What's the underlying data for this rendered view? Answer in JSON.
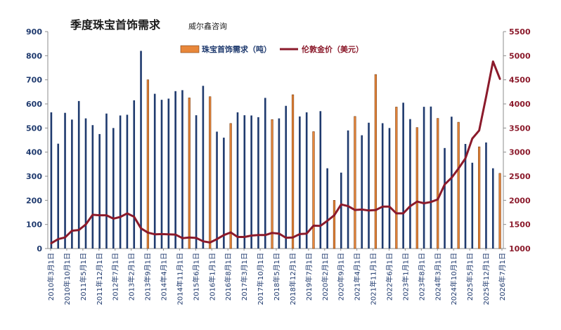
{
  "chart_data": {
    "type": "bar",
    "title": "季度珠宝首饰需求",
    "subtitle": "威尔鑫咨询",
    "legend_position": "top-center",
    "grid": false,
    "left_axis": {
      "min": 0,
      "max": 900,
      "ticks": [
        "0",
        "100",
        "200",
        "300",
        "400",
        "500",
        "600",
        "700",
        "800",
        "900"
      ]
    },
    "right_axis": {
      "min": 1000,
      "max": 5500,
      "ticks": [
        "1000",
        "1500",
        "2000",
        "2500",
        "3000",
        "3500",
        "4000",
        "4500",
        "5000",
        "5500"
      ]
    },
    "x_tick_labels": [
      "2010年3月1日",
      "2010年10月1日",
      "2011年5月1日",
      "2011年12月1日",
      "2012年7月1日",
      "2013年2月1日",
      "2013年9月1日",
      "2014年4月1日",
      "2014年11月1日",
      "2015年6月1日",
      "2016年1月1日",
      "2016年8月1日",
      "2017年3月1日",
      "2017年10月1日",
      "2018年5月1日",
      "2018年12月1日",
      "2019年7月1日",
      "2020年2月1日",
      "2020年9月1日",
      "2021年4月1日",
      "2021年11月1日",
      "2022年6月1日",
      "2023年1月1日",
      "2023年8月1日",
      "2024年3月1日",
      "2024年10月1日",
      "2025年5月1日",
      "2025年12月1日",
      "2026年7月1日"
    ],
    "series": [
      {
        "name": "珠宝首饰需求（吨）",
        "kind": "bar",
        "axis": "left",
        "color": "#1f3a6e",
        "highlight_color": "#e8873a",
        "values": [
          565,
          435,
          563,
          535,
          612,
          540,
          512,
          475,
          560,
          500,
          552,
          555,
          615,
          820,
          700,
          642,
          617,
          622,
          653,
          657,
          625,
          553,
          675,
          630,
          485,
          460,
          519,
          565,
          553,
          552,
          545,
          625,
          535,
          540,
          592,
          638,
          548,
          565,
          485,
          570,
          333,
          200,
          315,
          490,
          548,
          470,
          522,
          722,
          520,
          500,
          587,
          605,
          537,
          502,
          588,
          589,
          540,
          417,
          547,
          524,
          434,
          356,
          422,
          440,
          333,
          312
        ],
        "highlighted": [
          false,
          false,
          false,
          false,
          false,
          false,
          false,
          false,
          false,
          false,
          false,
          false,
          false,
          false,
          true,
          false,
          false,
          false,
          false,
          false,
          true,
          false,
          false,
          true,
          false,
          false,
          true,
          false,
          false,
          false,
          false,
          false,
          true,
          false,
          false,
          true,
          false,
          false,
          true,
          false,
          false,
          true,
          false,
          false,
          true,
          false,
          false,
          true,
          false,
          false,
          true,
          false,
          false,
          true,
          false,
          false,
          true,
          false,
          false,
          true,
          false,
          false,
          true,
          false,
          false,
          true
        ]
      },
      {
        "name": "伦敦金价（美元）",
        "kind": "line",
        "axis": "right",
        "color": "#8b1a2b",
        "values": [
          1110,
          1195,
          1230,
          1370,
          1385,
          1500,
          1700,
          1690,
          1690,
          1620,
          1655,
          1730,
          1660,
          1420,
          1330,
          1295,
          1300,
          1295,
          1290,
          1215,
          1230,
          1220,
          1150,
          1125,
          1195,
          1280,
          1335,
          1240,
          1240,
          1270,
          1280,
          1280,
          1325,
          1310,
          1225,
          1230,
          1300,
          1310,
          1475,
          1470,
          1575,
          1690,
          1915,
          1880,
          1800,
          1810,
          1790,
          1800,
          1870,
          1870,
          1730,
          1730,
          1880,
          1975,
          1940,
          1965,
          2020,
          2330,
          2470,
          2660,
          2870,
          3280,
          3450,
          4150,
          4880,
          4520
        ]
      }
    ]
  }
}
